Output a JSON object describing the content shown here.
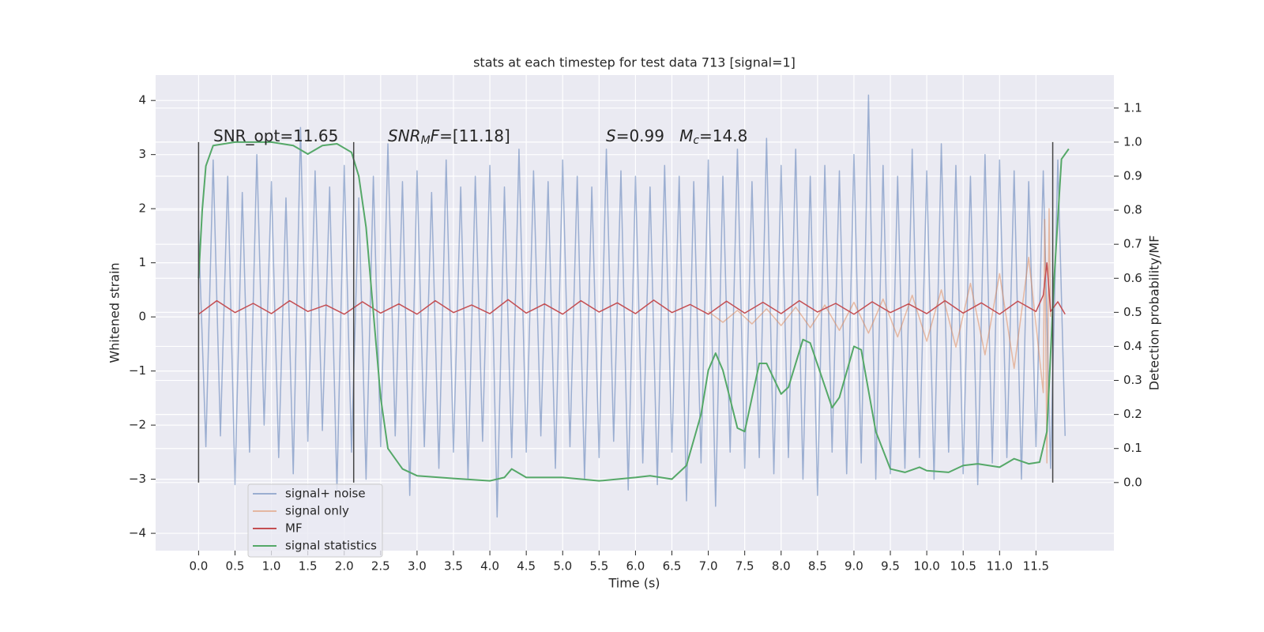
{
  "chart_data": {
    "type": "line",
    "title": "stats at each timestep for test data 713 [signal=1]",
    "xlabel": "Time (s)",
    "ylabel": "Whitened strain",
    "y2label": "Detection probability/MF",
    "xlim": [
      -0.59,
      12.57
    ],
    "ylim": [
      -4.32,
      4.47
    ],
    "y2lim": [
      -0.2,
      1.197
    ],
    "xticks": [
      {
        "value": 0,
        "label": "0.0"
      },
      {
        "value": 0.5,
        "label": "0.5"
      },
      {
        "value": 1,
        "label": "1.0"
      },
      {
        "value": 1.5,
        "label": "1.5"
      },
      {
        "value": 2,
        "label": "2.0"
      },
      {
        "value": 2.5,
        "label": "2.5"
      },
      {
        "value": 3,
        "label": "3.0"
      },
      {
        "value": 3.5,
        "label": "3.5"
      },
      {
        "value": 4,
        "label": "4.0"
      },
      {
        "value": 4.5,
        "label": "4.5"
      },
      {
        "value": 5,
        "label": "5.0"
      },
      {
        "value": 5.5,
        "label": "5.5"
      },
      {
        "value": 6,
        "label": "6.0"
      },
      {
        "value": 6.5,
        "label": "6.5"
      },
      {
        "value": 7,
        "label": "7.0"
      },
      {
        "value": 7.5,
        "label": "7.5"
      },
      {
        "value": 8,
        "label": "8.0"
      },
      {
        "value": 8.5,
        "label": "8.5"
      },
      {
        "value": 9,
        "label": "9.0"
      },
      {
        "value": 9.5,
        "label": "9.5"
      },
      {
        "value": 10,
        "label": "10.0"
      },
      {
        "value": 10.5,
        "label": "10.5"
      },
      {
        "value": 11,
        "label": "11.0"
      },
      {
        "value": 11.5,
        "label": "11.5"
      }
    ],
    "yticks": [
      {
        "value": -4,
        "label": "−4"
      },
      {
        "value": -3,
        "label": "−3"
      },
      {
        "value": -2,
        "label": "−2"
      },
      {
        "value": -1,
        "label": "−1"
      },
      0,
      1,
      2,
      3,
      4
    ],
    "y2ticks": [
      {
        "value": 0,
        "label": "0.0"
      },
      0.1,
      0.2,
      0.3,
      0.4,
      0.5,
      0.6,
      0.7,
      0.8,
      0.9,
      {
        "value": 1,
        "label": "1.0"
      },
      1.1
    ],
    "grid": true,
    "legend": "lower left",
    "vlines": [
      0,
      2.13,
      11.73
    ],
    "vline_span": [
      0,
      1
    ],
    "vline_color": "#444444",
    "annotations": [
      [
        {
          "text": "SNR_opt=11.65"
        }
      ],
      [
        {
          "text": "SNR",
          "italic": true
        },
        {
          "text": "M",
          "italic": true,
          "sub": true
        },
        {
          "text": "F",
          "italic": true
        },
        {
          "text": "=[11.18]"
        }
      ],
      [
        {
          "text": "S",
          "italic": true
        },
        {
          "text": "=0.99   "
        },
        {
          "text": "M",
          "italic": true
        },
        {
          "text": "c",
          "italic": true,
          "sub": true
        },
        {
          "text": "=14.8"
        }
      ]
    ],
    "series": [
      {
        "name": "signal+ noise",
        "color": "#4c72b0",
        "opacity": 0.5,
        "x": [
          0,
          0.1,
          0.2,
          0.3,
          0.4,
          0.5,
          0.6,
          0.7,
          0.8,
          0.9,
          1,
          1.1,
          1.2,
          1.3,
          1.4,
          1.5,
          1.6,
          1.7,
          1.8,
          1.9,
          2,
          2.1,
          2.2,
          2.3,
          2.4,
          2.5,
          2.6,
          2.7,
          2.8,
          2.9,
          3,
          3.1,
          3.2,
          3.3,
          3.4,
          3.5,
          3.6,
          3.7,
          3.8,
          3.9,
          4,
          4.1,
          4.2,
          4.3,
          4.4,
          4.5,
          4.6,
          4.7,
          4.8,
          4.9,
          5,
          5.1,
          5.2,
          5.3,
          5.4,
          5.5,
          5.6,
          5.7,
          5.8,
          5.9,
          6,
          6.1,
          6.2,
          6.3,
          6.4,
          6.5,
          6.6,
          6.7,
          6.8,
          6.9,
          7,
          7.1,
          7.2,
          7.3,
          7.4,
          7.5,
          7.6,
          7.7,
          7.8,
          7.9,
          8,
          8.1,
          8.2,
          8.3,
          8.4,
          8.5,
          8.6,
          8.7,
          8.8,
          8.9,
          9,
          9.1,
          9.2,
          9.3,
          9.4,
          9.5,
          9.6,
          9.7,
          9.8,
          9.9,
          10,
          10.1,
          10.2,
          10.3,
          10.4,
          10.5,
          10.6,
          10.7,
          10.8,
          10.9,
          11,
          11.1,
          11.2,
          11.3,
          11.4,
          11.5,
          11.6,
          11.7,
          11.8,
          11.9
        ],
        "values": [
          1.6,
          -2.4,
          2.9,
          -2.2,
          2.6,
          -3.1,
          2.3,
          -2.5,
          3.0,
          -2.0,
          2.5,
          -2.6,
          2.2,
          -2.9,
          3.5,
          -2.3,
          2.7,
          -2.1,
          2.4,
          -3.2,
          2.8,
          -2.5,
          2.2,
          -3.0,
          2.6,
          -2.4,
          3.2,
          -2.2,
          2.5,
          -3.3,
          2.7,
          -2.4,
          2.3,
          -2.8,
          2.9,
          -2.5,
          2.4,
          -3.0,
          2.6,
          -2.3,
          2.8,
          -3.7,
          2.4,
          -2.6,
          3.1,
          -2.5,
          2.7,
          -2.2,
          2.5,
          -2.8,
          2.9,
          -2.4,
          2.6,
          -3.0,
          2.4,
          -2.6,
          3.1,
          -2.3,
          2.7,
          -3.2,
          2.6,
          -2.7,
          2.4,
          -3.1,
          2.8,
          -2.5,
          2.6,
          -3.4,
          2.5,
          -2.7,
          2.9,
          -3.5,
          2.6,
          -2.5,
          3.1,
          -2.8,
          2.5,
          -2.6,
          3.3,
          -2.9,
          2.8,
          -2.6,
          3.1,
          -3.0,
          2.6,
          -3.3,
          2.8,
          -2.5,
          2.7,
          -2.9,
          3.0,
          -2.7,
          4.1,
          -3.0,
          2.8,
          -2.9,
          2.6,
          -2.8,
          3.1,
          -2.6,
          2.7,
          -3.0,
          3.2,
          -2.5,
          2.8,
          -2.9,
          2.6,
          -3.1,
          3.0,
          -2.7,
          2.9,
          -2.6,
          2.7,
          -3.0,
          2.5,
          -2.4,
          2.7,
          -2.8,
          2.9,
          -2.2
        ]
      },
      {
        "name": "signal only",
        "color": "#dd8452",
        "opacity": 0.5,
        "x": [
          7.0,
          7.2,
          7.4,
          7.6,
          7.8,
          8.0,
          8.2,
          8.4,
          8.6,
          8.8,
          9.0,
          9.2,
          9.4,
          9.6,
          9.8,
          10.0,
          10.2,
          10.4,
          10.6,
          10.8,
          11.0,
          11.2,
          11.4,
          11.6,
          11.62,
          11.65,
          11.68,
          11.7
        ],
        "values": [
          0.1,
          -0.1,
          0.12,
          -0.13,
          0.15,
          -0.16,
          0.18,
          -0.2,
          0.22,
          -0.25,
          0.27,
          -0.3,
          0.33,
          -0.37,
          0.4,
          -0.45,
          0.5,
          -0.56,
          0.62,
          -0.7,
          0.8,
          -0.95,
          1.1,
          -1.4,
          1.8,
          -2.7,
          2.0,
          0
        ]
      },
      {
        "name": "MF",
        "color": "#c44e52",
        "opacity": 1,
        "x": [
          0,
          0.25,
          0.5,
          0.75,
          1,
          1.25,
          1.5,
          1.75,
          2,
          2.25,
          2.5,
          2.75,
          3,
          3.25,
          3.5,
          3.75,
          4,
          4.25,
          4.5,
          4.75,
          5,
          5.25,
          5.5,
          5.75,
          6,
          6.25,
          6.5,
          6.75,
          7,
          7.25,
          7.5,
          7.75,
          8,
          8.25,
          8.5,
          8.75,
          9,
          9.25,
          9.5,
          9.75,
          10,
          10.25,
          10.5,
          10.75,
          11,
          11.25,
          11.5,
          11.6,
          11.65,
          11.7,
          11.8,
          11.9
        ],
        "values": [
          0.05,
          0.3,
          0.08,
          0.25,
          0.06,
          0.3,
          0.1,
          0.22,
          0.05,
          0.28,
          0.07,
          0.24,
          0.05,
          0.3,
          0.08,
          0.22,
          0.06,
          0.32,
          0.07,
          0.24,
          0.05,
          0.3,
          0.09,
          0.26,
          0.06,
          0.31,
          0.08,
          0.23,
          0.05,
          0.29,
          0.07,
          0.27,
          0.06,
          0.3,
          0.09,
          0.25,
          0.05,
          0.28,
          0.08,
          0.24,
          0.06,
          0.3,
          0.07,
          0.26,
          0.05,
          0.29,
          0.1,
          0.4,
          1.0,
          0.1,
          0.28,
          0.05
        ]
      },
      {
        "name": "signal statistics",
        "color": "#55a868",
        "opacity": 1,
        "axis": "y2",
        "x": [
          0,
          0.05,
          0.1,
          0.2,
          0.5,
          1.0,
          1.3,
          1.5,
          1.7,
          1.9,
          2.1,
          2.2,
          2.3,
          2.4,
          2.5,
          2.6,
          2.8,
          3.0,
          3.5,
          4.0,
          4.2,
          4.3,
          4.5,
          5.0,
          5.5,
          6.0,
          6.2,
          6.5,
          6.7,
          6.9,
          7.0,
          7.1,
          7.2,
          7.4,
          7.5,
          7.6,
          7.7,
          7.8,
          8.0,
          8.1,
          8.3,
          8.4,
          8.7,
          8.8,
          9.0,
          9.1,
          9.3,
          9.5,
          9.7,
          9.9,
          10.0,
          10.3,
          10.5,
          10.7,
          11.0,
          11.2,
          11.4,
          11.55,
          11.65,
          11.75,
          11.85,
          11.95
        ],
        "values": [
          0.6,
          0.8,
          0.93,
          0.99,
          1.0,
          1.0,
          0.99,
          0.965,
          0.99,
          0.995,
          0.97,
          0.9,
          0.75,
          0.5,
          0.25,
          0.1,
          0.04,
          0.02,
          0.012,
          0.005,
          0.015,
          0.04,
          0.015,
          0.015,
          0.005,
          0.015,
          0.02,
          0.01,
          0.05,
          0.2,
          0.33,
          0.38,
          0.33,
          0.16,
          0.15,
          0.25,
          0.35,
          0.35,
          0.26,
          0.28,
          0.42,
          0.41,
          0.22,
          0.25,
          0.4,
          0.39,
          0.15,
          0.04,
          0.03,
          0.045,
          0.035,
          0.03,
          0.05,
          0.055,
          0.045,
          0.07,
          0.055,
          0.06,
          0.15,
          0.6,
          0.95,
          0.98
        ]
      }
    ]
  }
}
